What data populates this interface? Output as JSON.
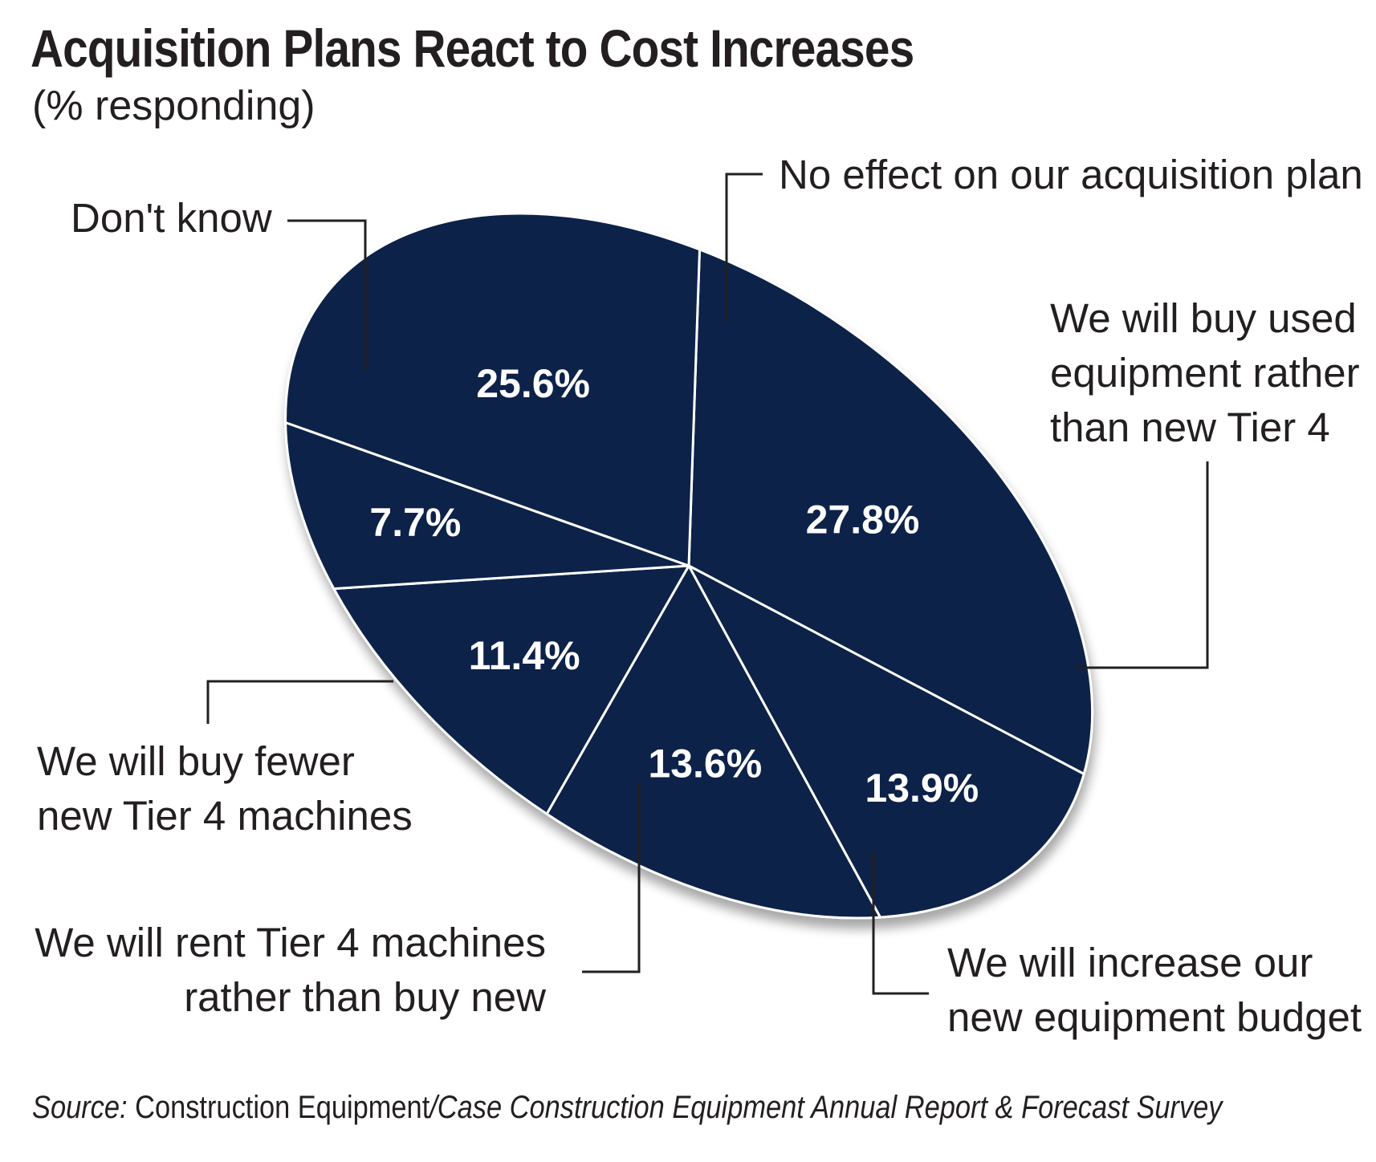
{
  "title": "Acquisition Plans React to Cost Increases",
  "subtitle": "(% responding)",
  "source": {
    "prefix": "Source:",
    "publication": " Construction Equipment",
    "rest": "/Case Construction Equipment Annual Report & Forecast Survey"
  },
  "colors": {
    "slice": "#0b2249",
    "separator": "#ffffff",
    "text": "#231f20"
  },
  "chart_data": {
    "type": "pie",
    "title": "Acquisition Plans React to Cost Increases",
    "subtitle": "(% responding)",
    "unit": "%",
    "slices": [
      {
        "label": "No effect on our acquisition plan",
        "value": 27.8,
        "value_label": "27.8%"
      },
      {
        "label": "We will buy used equipment rather than new Tier 4",
        "value": 13.9,
        "value_label": "13.9%"
      },
      {
        "label": "We will increase our new equipment budget",
        "value": 13.6,
        "value_label": "13.6%"
      },
      {
        "label": "We will rent Tier 4 machines rather than buy new",
        "value": 11.4,
        "value_label": "11.4%"
      },
      {
        "label": "We will buy fewer new Tier 4 machines",
        "value": 7.7,
        "value_label": "7.7%"
      },
      {
        "label": "Don't know",
        "value": 25.6,
        "value_label": "25.6%"
      }
    ],
    "label_lines": [
      [
        "No effect on our acquisition plan"
      ],
      [
        "We will buy used",
        "equipment rather",
        "than new Tier 4"
      ],
      [
        "We will increase our",
        "new equipment budget"
      ],
      [
        "We will rent Tier 4 machines",
        "rather than buy new"
      ],
      [
        "We will buy fewer",
        "new Tier 4 machines"
      ],
      [
        "Don't know"
      ]
    ]
  }
}
